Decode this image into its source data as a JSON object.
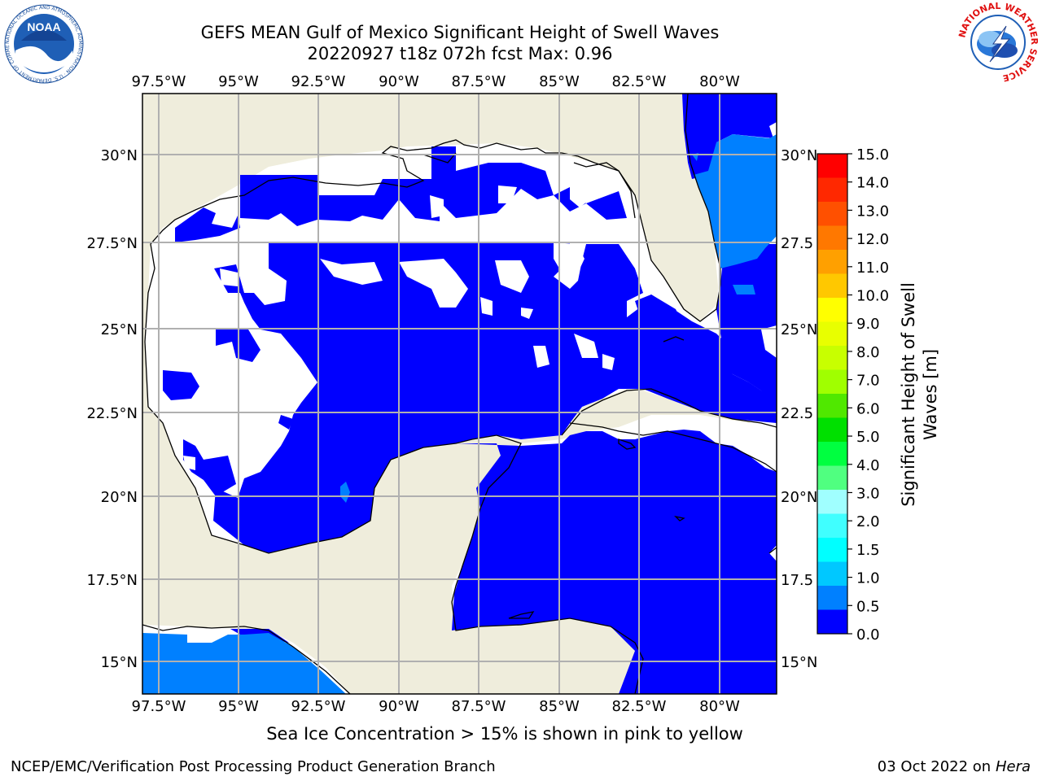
{
  "header": {
    "title_line1": "GEFS MEAN Gulf of Mexico Significant Height of Swell Waves",
    "title_line2": "20220927 t18z 072h fcst   Max: 0.96"
  },
  "logos": {
    "left": "noaa-logo",
    "left_text": "NOAA",
    "left_ring": "NATIONAL OCEANIC AND ATMOSPHERIC ADMINISTRATION · U.S. DEPARTMENT OF COMMERCE",
    "right": "nws-logo",
    "right_ring": "NATIONAL WEATHER SERVICE"
  },
  "map": {
    "lon_labels": [
      "97.5°W",
      "95°W",
      "92.5°W",
      "90°W",
      "87.5°W",
      "85°W",
      "82.5°W",
      "80°W"
    ],
    "lon_values": [
      -97.5,
      -95,
      -92.5,
      -90,
      -87.5,
      -85,
      -82.5,
      -80
    ],
    "lat_labels_left": [
      "30°N",
      "27.5°N",
      "25°N",
      "22.5°N",
      "20°N",
      "17.5°N",
      "15°N"
    ],
    "lat_labels_right": [
      "30°N",
      "27.5",
      "25°N",
      "22.5",
      "20°N",
      "17.5",
      "15°N"
    ],
    "lat_values": [
      30,
      27.5,
      25,
      22.5,
      20,
      17.5,
      15
    ],
    "extent": {
      "lon_min": -98,
      "lon_max": -78,
      "lat_min": 14,
      "lat_max": 31.8
    },
    "colors": {
      "land": "#efeddc",
      "ice_free_white": "#ffffff",
      "level_0": "#0000ff",
      "level_05": "#0080ff",
      "grid": "#b0b0b0"
    }
  },
  "colorbar": {
    "label": "Significant Height of Swell Waves [m]",
    "label_line1": "Significant Height of Swell",
    "label_line2": "Waves [m]",
    "ticks": [
      "15.0",
      "14.0",
      "13.0",
      "12.0",
      "11.0",
      "10.0",
      "9.0",
      "8.0",
      "7.0",
      "6.0",
      "5.0",
      "4.0",
      "3.0",
      "2.0",
      "1.5",
      "1.0",
      "0.5",
      "0.0"
    ],
    "colors": [
      "#ff0000",
      "#ff2800",
      "#ff5000",
      "#ff7800",
      "#ffa000",
      "#ffc800",
      "#ffff00",
      "#e8ff00",
      "#c8ff00",
      "#a0ff00",
      "#50e800",
      "#00e000",
      "#00ff40",
      "#50ff80",
      "#a0ffff",
      "#40ffff",
      "#00ffff",
      "#00c8ff",
      "#0080ff",
      "#0000ff"
    ],
    "bins": [
      15,
      14,
      13,
      12,
      11,
      10,
      9,
      8,
      7,
      6,
      5,
      4,
      3,
      2,
      1.5,
      1.0,
      0.5,
      0
    ]
  },
  "caption": "Sea Ice Concentration > 15% is shown in pink to yellow",
  "footer": {
    "left": "NCEP/EMC/Verification Post Processing Product Generation Branch",
    "right_date": "03 Oct 2022 on ",
    "right_machine": "Hera"
  }
}
